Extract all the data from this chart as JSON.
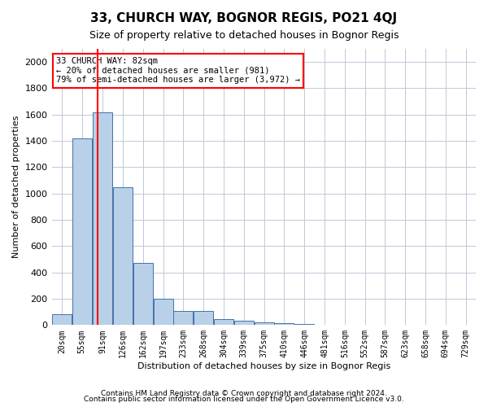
{
  "title": "33, CHURCH WAY, BOGNOR REGIS, PO21 4QJ",
  "subtitle": "Size of property relative to detached houses in Bognor Regis",
  "xlabel": "Distribution of detached houses by size in Bognor Regis",
  "ylabel": "Number of detached properties",
  "footnote1": "Contains HM Land Registry data © Crown copyright and database right 2024.",
  "footnote2": "Contains public sector information licensed under the Open Government Licence v3.0.",
  "annotation_line1": "33 CHURCH WAY: 82sqm",
  "annotation_line2": "← 20% of detached houses are smaller (981)",
  "annotation_line3": "79% of semi-detached houses are larger (3,972) →",
  "bar_color": "#b8d0e8",
  "bar_edge_color": "#4472a8",
  "redline_x": 82,
  "categories": [
    "20sqm",
    "55sqm",
    "91sqm",
    "126sqm",
    "162sqm",
    "197sqm",
    "233sqm",
    "268sqm",
    "304sqm",
    "339sqm",
    "375sqm",
    "410sqm",
    "446sqm",
    "481sqm",
    "516sqm",
    "552sqm",
    "587sqm",
    "623sqm",
    "658sqm",
    "694sqm",
    "729sqm"
  ],
  "bin_edges": [
    2.5,
    37.5,
    72.5,
    108.5,
    143.5,
    178.5,
    213.5,
    248.5,
    283.5,
    318.5,
    353.5,
    388.5,
    423.5,
    458.5,
    493.5,
    528.5,
    563.5,
    598.5,
    633.5,
    668.5,
    703.5,
    738.5
  ],
  "bar_heights": [
    80,
    1420,
    1620,
    1050,
    470,
    200,
    110,
    110,
    45,
    30,
    20,
    15,
    10,
    5,
    5,
    5,
    2,
    2,
    1,
    1,
    1
  ],
  "ylim": [
    0,
    2100
  ],
  "yticks": [
    0,
    200,
    400,
    600,
    800,
    1000,
    1200,
    1400,
    1600,
    1800,
    2000
  ]
}
